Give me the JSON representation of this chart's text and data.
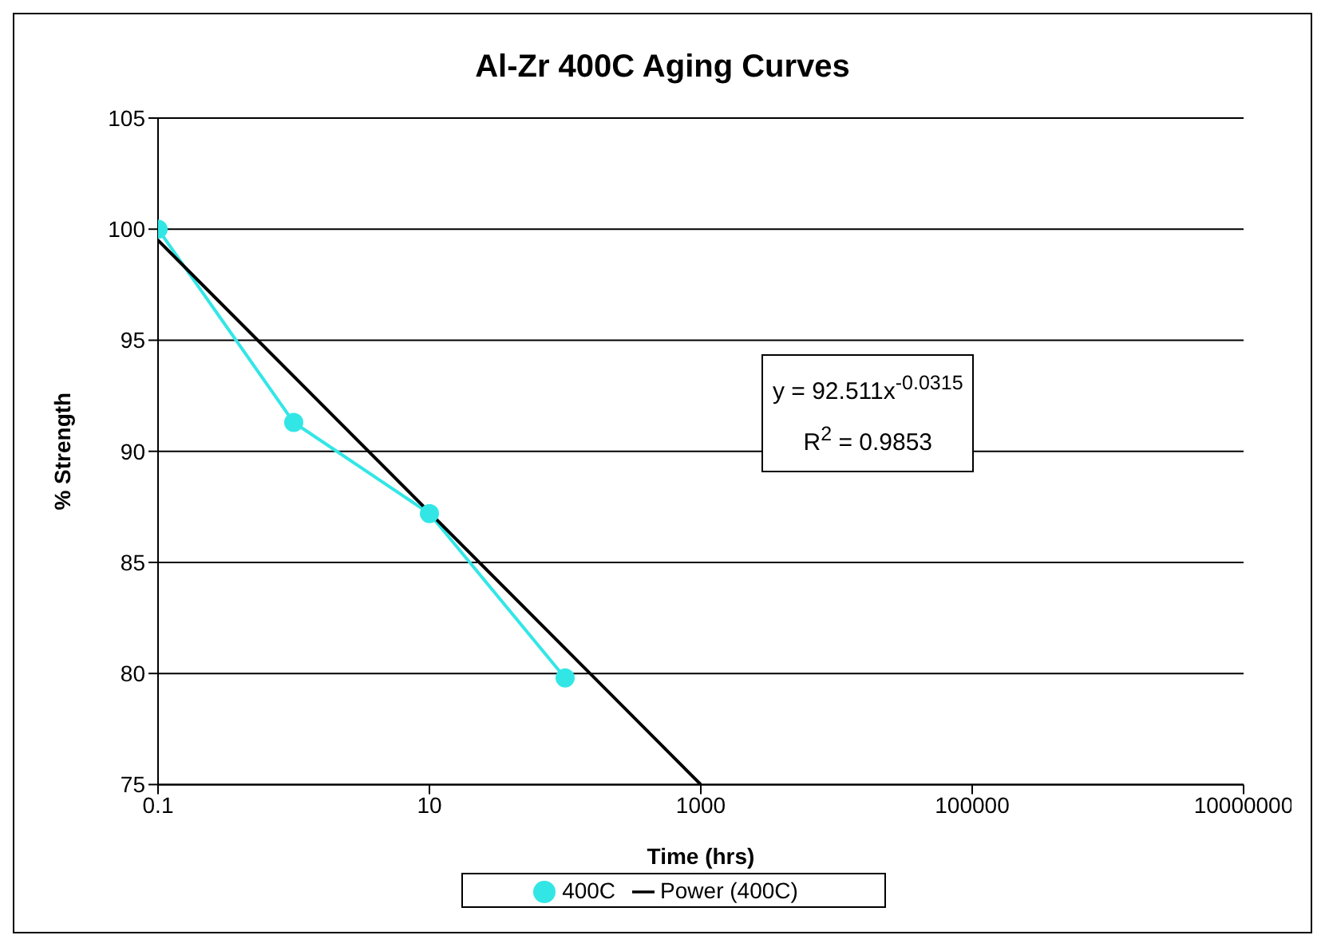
{
  "chart_data": {
    "type": "line",
    "title": "Al-Zr 400C Aging Curves",
    "xlabel": "Time (hrs)",
    "ylabel": "% Strength",
    "log": "x",
    "xlim": [
      0.1,
      10000000
    ],
    "xticks": [
      0.1,
      10,
      1000,
      100000,
      10000000
    ],
    "ylim": [
      75,
      105
    ],
    "yticks": [
      75,
      80,
      85,
      90,
      95,
      100,
      105
    ],
    "grid": "y",
    "legend": "bottom",
    "series": [
      {
        "name": "400C",
        "color": "#33e6e6",
        "marker": "circle",
        "x": [
          0.1,
          1,
          10,
          100
        ],
        "values": [
          100,
          91.3,
          87.2,
          79.8
        ]
      },
      {
        "name": "Power (400C)",
        "color": "#000000",
        "marker": "none",
        "x": [
          0.1,
          1000
        ],
        "values": [
          99.5,
          75
        ]
      }
    ],
    "annotations": [
      "y = 92.511x$^{-0.0315}$",
      "R$^{2}$ = 0.9853"
    ]
  }
}
